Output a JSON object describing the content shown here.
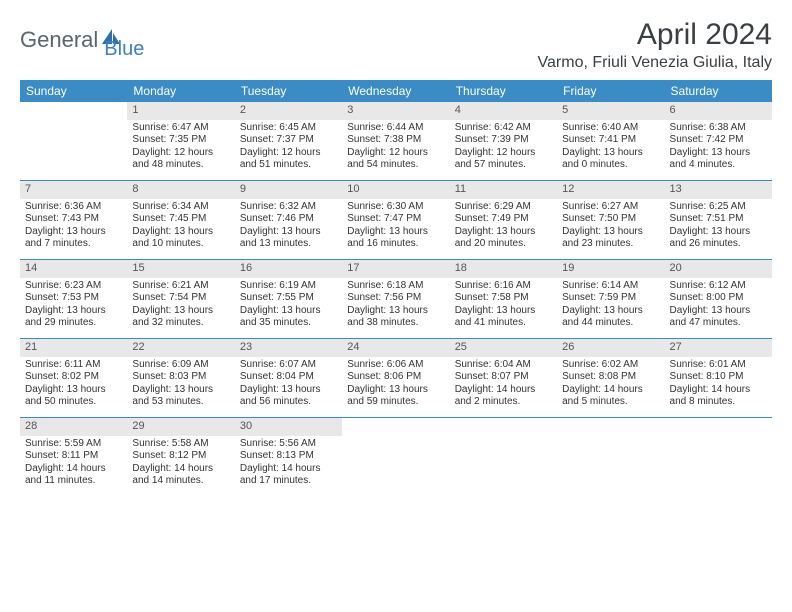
{
  "logo": {
    "part1": "General",
    "part2": "Blue"
  },
  "title": "April 2024",
  "location": "Varmo, Friuli Venezia Giulia, Italy",
  "colors": {
    "header_bg": "#3b8bc4",
    "header_text": "#ffffff",
    "daynum_bg": "#e8e8e8",
    "border": "#3b8bc4",
    "logo_gray": "#5a6570",
    "logo_blue": "#3b82c4"
  },
  "weekdays": [
    "Sunday",
    "Monday",
    "Tuesday",
    "Wednesday",
    "Thursday",
    "Friday",
    "Saturday"
  ],
  "weeks": [
    [
      {
        "n": "",
        "sr": "",
        "ss": "",
        "dl1": "",
        "dl2": ""
      },
      {
        "n": "1",
        "sr": "Sunrise: 6:47 AM",
        "ss": "Sunset: 7:35 PM",
        "dl1": "Daylight: 12 hours",
        "dl2": "and 48 minutes."
      },
      {
        "n": "2",
        "sr": "Sunrise: 6:45 AM",
        "ss": "Sunset: 7:37 PM",
        "dl1": "Daylight: 12 hours",
        "dl2": "and 51 minutes."
      },
      {
        "n": "3",
        "sr": "Sunrise: 6:44 AM",
        "ss": "Sunset: 7:38 PM",
        "dl1": "Daylight: 12 hours",
        "dl2": "and 54 minutes."
      },
      {
        "n": "4",
        "sr": "Sunrise: 6:42 AM",
        "ss": "Sunset: 7:39 PM",
        "dl1": "Daylight: 12 hours",
        "dl2": "and 57 minutes."
      },
      {
        "n": "5",
        "sr": "Sunrise: 6:40 AM",
        "ss": "Sunset: 7:41 PM",
        "dl1": "Daylight: 13 hours",
        "dl2": "and 0 minutes."
      },
      {
        "n": "6",
        "sr": "Sunrise: 6:38 AM",
        "ss": "Sunset: 7:42 PM",
        "dl1": "Daylight: 13 hours",
        "dl2": "and 4 minutes."
      }
    ],
    [
      {
        "n": "7",
        "sr": "Sunrise: 6:36 AM",
        "ss": "Sunset: 7:43 PM",
        "dl1": "Daylight: 13 hours",
        "dl2": "and 7 minutes."
      },
      {
        "n": "8",
        "sr": "Sunrise: 6:34 AM",
        "ss": "Sunset: 7:45 PM",
        "dl1": "Daylight: 13 hours",
        "dl2": "and 10 minutes."
      },
      {
        "n": "9",
        "sr": "Sunrise: 6:32 AM",
        "ss": "Sunset: 7:46 PM",
        "dl1": "Daylight: 13 hours",
        "dl2": "and 13 minutes."
      },
      {
        "n": "10",
        "sr": "Sunrise: 6:30 AM",
        "ss": "Sunset: 7:47 PM",
        "dl1": "Daylight: 13 hours",
        "dl2": "and 16 minutes."
      },
      {
        "n": "11",
        "sr": "Sunrise: 6:29 AM",
        "ss": "Sunset: 7:49 PM",
        "dl1": "Daylight: 13 hours",
        "dl2": "and 20 minutes."
      },
      {
        "n": "12",
        "sr": "Sunrise: 6:27 AM",
        "ss": "Sunset: 7:50 PM",
        "dl1": "Daylight: 13 hours",
        "dl2": "and 23 minutes."
      },
      {
        "n": "13",
        "sr": "Sunrise: 6:25 AM",
        "ss": "Sunset: 7:51 PM",
        "dl1": "Daylight: 13 hours",
        "dl2": "and 26 minutes."
      }
    ],
    [
      {
        "n": "14",
        "sr": "Sunrise: 6:23 AM",
        "ss": "Sunset: 7:53 PM",
        "dl1": "Daylight: 13 hours",
        "dl2": "and 29 minutes."
      },
      {
        "n": "15",
        "sr": "Sunrise: 6:21 AM",
        "ss": "Sunset: 7:54 PM",
        "dl1": "Daylight: 13 hours",
        "dl2": "and 32 minutes."
      },
      {
        "n": "16",
        "sr": "Sunrise: 6:19 AM",
        "ss": "Sunset: 7:55 PM",
        "dl1": "Daylight: 13 hours",
        "dl2": "and 35 minutes."
      },
      {
        "n": "17",
        "sr": "Sunrise: 6:18 AM",
        "ss": "Sunset: 7:56 PM",
        "dl1": "Daylight: 13 hours",
        "dl2": "and 38 minutes."
      },
      {
        "n": "18",
        "sr": "Sunrise: 6:16 AM",
        "ss": "Sunset: 7:58 PM",
        "dl1": "Daylight: 13 hours",
        "dl2": "and 41 minutes."
      },
      {
        "n": "19",
        "sr": "Sunrise: 6:14 AM",
        "ss": "Sunset: 7:59 PM",
        "dl1": "Daylight: 13 hours",
        "dl2": "and 44 minutes."
      },
      {
        "n": "20",
        "sr": "Sunrise: 6:12 AM",
        "ss": "Sunset: 8:00 PM",
        "dl1": "Daylight: 13 hours",
        "dl2": "and 47 minutes."
      }
    ],
    [
      {
        "n": "21",
        "sr": "Sunrise: 6:11 AM",
        "ss": "Sunset: 8:02 PM",
        "dl1": "Daylight: 13 hours",
        "dl2": "and 50 minutes."
      },
      {
        "n": "22",
        "sr": "Sunrise: 6:09 AM",
        "ss": "Sunset: 8:03 PM",
        "dl1": "Daylight: 13 hours",
        "dl2": "and 53 minutes."
      },
      {
        "n": "23",
        "sr": "Sunrise: 6:07 AM",
        "ss": "Sunset: 8:04 PM",
        "dl1": "Daylight: 13 hours",
        "dl2": "and 56 minutes."
      },
      {
        "n": "24",
        "sr": "Sunrise: 6:06 AM",
        "ss": "Sunset: 8:06 PM",
        "dl1": "Daylight: 13 hours",
        "dl2": "and 59 minutes."
      },
      {
        "n": "25",
        "sr": "Sunrise: 6:04 AM",
        "ss": "Sunset: 8:07 PM",
        "dl1": "Daylight: 14 hours",
        "dl2": "and 2 minutes."
      },
      {
        "n": "26",
        "sr": "Sunrise: 6:02 AM",
        "ss": "Sunset: 8:08 PM",
        "dl1": "Daylight: 14 hours",
        "dl2": "and 5 minutes."
      },
      {
        "n": "27",
        "sr": "Sunrise: 6:01 AM",
        "ss": "Sunset: 8:10 PM",
        "dl1": "Daylight: 14 hours",
        "dl2": "and 8 minutes."
      }
    ],
    [
      {
        "n": "28",
        "sr": "Sunrise: 5:59 AM",
        "ss": "Sunset: 8:11 PM",
        "dl1": "Daylight: 14 hours",
        "dl2": "and 11 minutes."
      },
      {
        "n": "29",
        "sr": "Sunrise: 5:58 AM",
        "ss": "Sunset: 8:12 PM",
        "dl1": "Daylight: 14 hours",
        "dl2": "and 14 minutes."
      },
      {
        "n": "30",
        "sr": "Sunrise: 5:56 AM",
        "ss": "Sunset: 8:13 PM",
        "dl1": "Daylight: 14 hours",
        "dl2": "and 17 minutes."
      },
      {
        "n": "",
        "sr": "",
        "ss": "",
        "dl1": "",
        "dl2": ""
      },
      {
        "n": "",
        "sr": "",
        "ss": "",
        "dl1": "",
        "dl2": ""
      },
      {
        "n": "",
        "sr": "",
        "ss": "",
        "dl1": "",
        "dl2": ""
      },
      {
        "n": "",
        "sr": "",
        "ss": "",
        "dl1": "",
        "dl2": ""
      }
    ]
  ]
}
